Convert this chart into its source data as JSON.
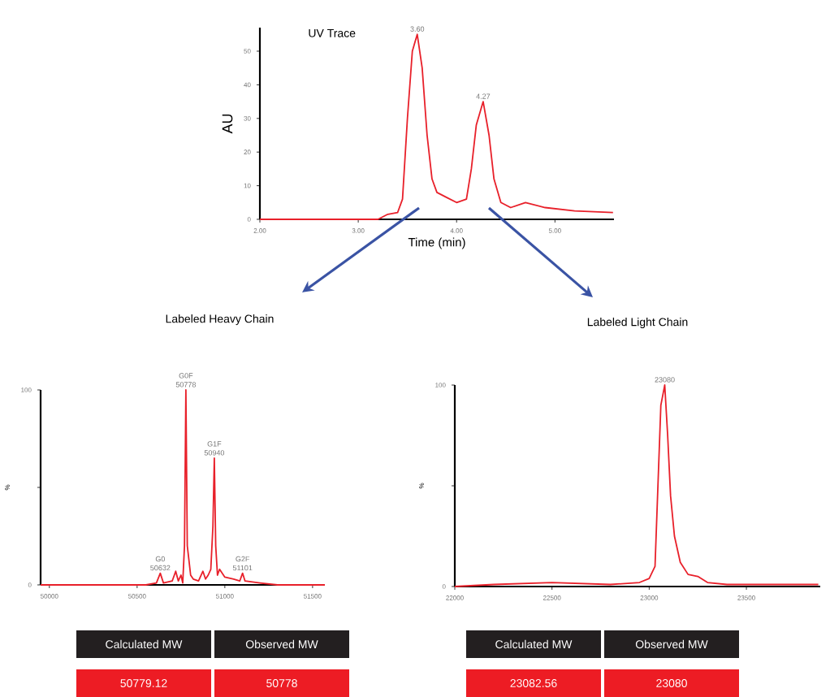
{
  "chart_data": [
    {
      "type": "line",
      "title": "UV Trace",
      "xlabel": "Time (min)",
      "ylabel": "AU",
      "color": "#e8202a",
      "x": [
        2.0,
        3.2,
        3.3,
        3.4,
        3.45,
        3.5,
        3.55,
        3.6,
        3.65,
        3.7,
        3.75,
        3.8,
        3.9,
        4.0,
        4.1,
        4.15,
        4.2,
        4.27,
        4.33,
        4.38,
        4.45,
        4.55,
        4.7,
        4.9,
        5.2,
        5.59
      ],
      "values": [
        0,
        0,
        1.5,
        2,
        6,
        30,
        50,
        55,
        45,
        25,
        12,
        8,
        6.5,
        5,
        6,
        15,
        28,
        35,
        25,
        12,
        5,
        3.5,
        5,
        3.5,
        2.5,
        2
      ],
      "xlim": [
        2.0,
        5.6
      ],
      "ylim": [
        0,
        57
      ],
      "xticks": [
        {
          "value": 2,
          "label": "2.00"
        },
        {
          "value": 3,
          "label": "3.00"
        },
        {
          "value": 4,
          "label": "4.00"
        },
        {
          "value": 5,
          "label": "5.00"
        }
      ],
      "yticks": [
        0,
        10,
        20,
        30,
        40,
        50
      ],
      "annotations": [
        {
          "text": "3.60",
          "x": 3.6,
          "y": 55
        },
        {
          "text": "4.27",
          "x": 4.27,
          "y": 35
        }
      ]
    },
    {
      "type": "line",
      "title": "Labeled Heavy Chain",
      "ylabel": "%",
      "color": "#e8202a",
      "x": [
        49950,
        50550,
        50610,
        50632,
        50650,
        50700,
        50720,
        50735,
        50750,
        50760,
        50770,
        50778,
        50786,
        50795,
        50805,
        50820,
        50850,
        50875,
        50890,
        50905,
        50920,
        50932,
        50940,
        50948,
        50958,
        50970,
        51000,
        51050,
        51085,
        51101,
        51115,
        51200,
        51300,
        51570
      ],
      "values": [
        0,
        0,
        1,
        6,
        1,
        2,
        7,
        2,
        5,
        1,
        20,
        100,
        20,
        13,
        5,
        3,
        2,
        7,
        3,
        5,
        8,
        30,
        65,
        20,
        5,
        8,
        4,
        3,
        2,
        6,
        2,
        1,
        0,
        0
      ],
      "xlim": [
        49950,
        51570
      ],
      "ylim": [
        0,
        100
      ],
      "xticks": [
        50000,
        50500,
        51000,
        51500
      ],
      "yticks": [
        0,
        {
          "value": 50,
          "label": null
        },
        100
      ],
      "annotations": [
        {
          "text": "G0F",
          "x": 50778,
          "y": 100
        },
        {
          "text": "50778",
          "x": 50778,
          "y": 100
        },
        {
          "text": "G1F",
          "x": 50940,
          "y": 65
        },
        {
          "text": "50940",
          "x": 50940,
          "y": 65
        },
        {
          "text": "G0",
          "x": 50632,
          "y": 6
        },
        {
          "text": "50632",
          "x": 50632,
          "y": 6
        },
        {
          "text": "G2F",
          "x": 51101,
          "y": 6
        },
        {
          "text": "51101",
          "x": 51101,
          "y": 6
        },
        "Calculated MW",
        "Observed MW",
        "50779.12",
        "50778"
      ]
    },
    {
      "type": "line",
      "title": "Labeled Light Chain",
      "ylabel": "%",
      "color": "#e8202a",
      "x": [
        22000,
        22200,
        22500,
        22800,
        22950,
        23000,
        23030,
        23045,
        23060,
        23080,
        23095,
        23110,
        23130,
        23160,
        23200,
        23250,
        23300,
        23400,
        23600,
        23870
      ],
      "values": [
        0,
        1,
        2,
        1,
        2,
        4,
        10,
        50,
        90,
        100,
        75,
        45,
        25,
        12,
        6,
        5,
        2,
        1,
        1,
        1
      ],
      "xlim": [
        22000,
        23880
      ],
      "ylim": [
        0,
        100
      ],
      "xticks": [
        22000,
        22500,
        23000,
        23500
      ],
      "yticks": [
        0,
        {
          "value": 50,
          "label": null
        },
        100
      ],
      "annotations": [
        {
          "text": "23080",
          "x": 23080,
          "y": 100
        },
        "Calculated MW",
        "Observed MW",
        "23082.56",
        "23080"
      ]
    }
  ]
}
